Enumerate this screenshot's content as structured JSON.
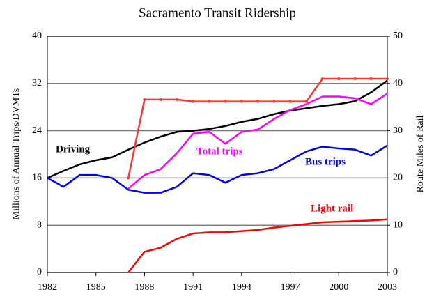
{
  "chart_data": {
    "type": "line",
    "title": "Sacramento Transit Ridership",
    "ylabel": "Millions of Annual Trips/DVMTs",
    "y2label": "Route Miles of Rail",
    "x": [
      1982,
      1983,
      1984,
      1985,
      1986,
      1987,
      1988,
      1989,
      1990,
      1991,
      1992,
      1993,
      1994,
      1995,
      1996,
      1997,
      1998,
      1999,
      2000,
      2001,
      2002,
      2003
    ],
    "xlim": [
      1982,
      2003
    ],
    "xticks": [
      1982,
      1985,
      1988,
      1991,
      1994,
      1997,
      2000,
      2003
    ],
    "ylim": [
      0,
      40
    ],
    "yticks": [
      0,
      8,
      16,
      24,
      32,
      40
    ],
    "y2lim": [
      0,
      50
    ],
    "y2ticks": [
      0,
      10,
      20,
      30,
      40,
      50
    ],
    "grid": true,
    "series": [
      {
        "name": "Driving",
        "color": "#000000",
        "values": [
          16,
          17.2,
          18.3,
          19,
          19.5,
          20.8,
          22,
          23,
          23.8,
          24,
          24.3,
          24.8,
          25.5,
          26,
          26.8,
          27.4,
          27.8,
          28.2,
          28.5,
          29,
          30.5,
          32.5
        ]
      },
      {
        "name": "Total trips",
        "color": "#ff00ff",
        "values": [
          null,
          null,
          null,
          null,
          null,
          14.2,
          16.5,
          17.5,
          20.2,
          23.5,
          23.8,
          21.8,
          23.8,
          24.2,
          26,
          27.5,
          28.5,
          29.8,
          29.8,
          29.5,
          28.5,
          30.3
        ]
      },
      {
        "name": "Bus trips",
        "color": "#0000ee",
        "values": [
          16,
          14.5,
          16.5,
          16.5,
          16,
          14,
          13.5,
          13.5,
          14.5,
          16.8,
          16.5,
          15.2,
          16.5,
          16.8,
          17.5,
          19,
          20.5,
          21.3,
          21,
          20.8,
          19.8,
          21.5
        ]
      },
      {
        "name": "Light rail",
        "color": "#ff0000",
        "values": [
          null,
          null,
          null,
          null,
          null,
          0,
          3.5,
          4.2,
          5.7,
          6.6,
          6.8,
          6.8,
          7,
          7.2,
          7.6,
          7.9,
          8.2,
          8.5,
          8.6,
          8.7,
          8.8,
          9
        ]
      },
      {
        "color": "#ff3333",
        "axis": "y2",
        "markers": true,
        "values": [
          null,
          null,
          null,
          null,
          null,
          20,
          36.6,
          36.6,
          36.6,
          36.2,
          36.2,
          36.2,
          36.2,
          36.2,
          36.2,
          36.2,
          36.2,
          41,
          41,
          41,
          41,
          41
        ]
      }
    ]
  }
}
